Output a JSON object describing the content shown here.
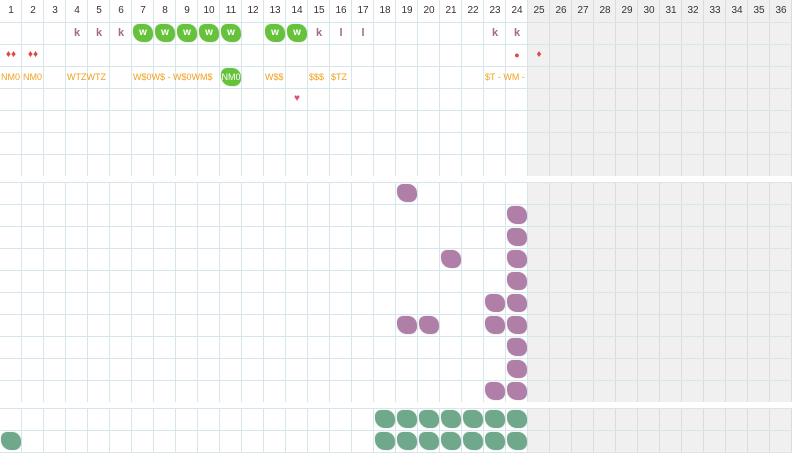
{
  "columns": [
    "1",
    "2",
    "3",
    "4",
    "5",
    "6",
    "7",
    "8",
    "9",
    "10",
    "11",
    "12",
    "13",
    "14",
    "15",
    "16",
    "17",
    "18",
    "19",
    "20",
    "21",
    "22",
    "23",
    "24",
    "25",
    "26",
    "27",
    "28",
    "29",
    "30",
    "31",
    "32",
    "33",
    "34",
    "35",
    "36"
  ],
  "active_columns": 24,
  "colors": {
    "grid_line": "#d6e6ec",
    "inactive_bg": "#f0f0f0",
    "green_tile": "#66c23a",
    "purple_tile": "#b07fa8",
    "teal_tile": "#6fa88a",
    "k_mark": "#a36a8a",
    "orange_text": "#f0a020",
    "red_mark": "#e04848"
  },
  "panel1": {
    "row1": [
      {
        "col": 4,
        "kind": "k",
        "text": "k"
      },
      {
        "col": 5,
        "kind": "k",
        "text": "k"
      },
      {
        "col": 6,
        "kind": "k",
        "text": "k"
      },
      {
        "col": 7,
        "kind": "w",
        "text": "w"
      },
      {
        "col": 8,
        "kind": "w",
        "text": "w"
      },
      {
        "col": 9,
        "kind": "w",
        "text": "w"
      },
      {
        "col": 10,
        "kind": "w",
        "text": "w"
      },
      {
        "col": 11,
        "kind": "w",
        "text": "w"
      },
      {
        "col": 13,
        "kind": "w",
        "text": "w"
      },
      {
        "col": 14,
        "kind": "w",
        "text": "w"
      },
      {
        "col": 15,
        "kind": "k",
        "text": "k"
      },
      {
        "col": 16,
        "kind": "l",
        "text": "l"
      },
      {
        "col": 17,
        "kind": "l",
        "text": "l"
      },
      {
        "col": 23,
        "kind": "k",
        "text": "k"
      },
      {
        "col": 24,
        "kind": "k",
        "text": "k"
      }
    ],
    "row2": [
      {
        "col": 1,
        "kind": "drop",
        "text": "♦♦"
      },
      {
        "col": 2,
        "kind": "drop",
        "text": "♦♦"
      },
      {
        "col": 24,
        "kind": "dot",
        "text": "●"
      },
      {
        "col": 25,
        "kind": "drop",
        "text": "♦"
      }
    ],
    "row3": [
      {
        "col": 1,
        "kind": "orange",
        "text": "NM0"
      },
      {
        "col": 2,
        "kind": "orange",
        "text": "NM0"
      },
      {
        "col": 4,
        "kind": "orange",
        "text": "WTZWTZ"
      },
      {
        "col": 7,
        "kind": "orange",
        "text": "W$0W$ - W$0WM$"
      },
      {
        "col": 11,
        "kind": "greenlabel",
        "text": "NM0"
      },
      {
        "col": 13,
        "kind": "orange",
        "text": "W$$"
      },
      {
        "col": 15,
        "kind": "orange",
        "text": "$$$"
      },
      {
        "col": 16,
        "kind": "orange",
        "text": "$TZ"
      },
      {
        "col": 23,
        "kind": "orange",
        "text": "$T - WM -"
      }
    ],
    "row4": [
      {
        "col": 14,
        "kind": "heart",
        "text": "♥"
      }
    ]
  },
  "panel2": {
    "tiles": [
      {
        "col": 19,
        "row": 1
      },
      {
        "col": 24,
        "row": 2
      },
      {
        "col": 24,
        "row": 3
      },
      {
        "col": 21,
        "row": 4
      },
      {
        "col": 24,
        "row": 4
      },
      {
        "col": 24,
        "row": 5
      },
      {
        "col": 23,
        "row": 6
      },
      {
        "col": 24,
        "row": 6
      },
      {
        "col": 19,
        "row": 7
      },
      {
        "col": 20,
        "row": 7
      },
      {
        "col": 23,
        "row": 7
      },
      {
        "col": 24,
        "row": 7
      },
      {
        "col": 24,
        "row": 8
      },
      {
        "col": 24,
        "row": 9
      },
      {
        "col": 23,
        "row": 10
      },
      {
        "col": 24,
        "row": 10
      }
    ]
  },
  "panel3": {
    "tiles": [
      {
        "col": 18,
        "row": 1
      },
      {
        "col": 19,
        "row": 1
      },
      {
        "col": 20,
        "row": 1
      },
      {
        "col": 21,
        "row": 1
      },
      {
        "col": 22,
        "row": 1
      },
      {
        "col": 23,
        "row": 1
      },
      {
        "col": 24,
        "row": 1
      },
      {
        "col": 1,
        "row": 2
      },
      {
        "col": 18,
        "row": 2
      },
      {
        "col": 19,
        "row": 2
      },
      {
        "col": 20,
        "row": 2
      },
      {
        "col": 21,
        "row": 2
      },
      {
        "col": 22,
        "row": 2
      },
      {
        "col": 23,
        "row": 2
      },
      {
        "col": 24,
        "row": 2
      }
    ]
  }
}
